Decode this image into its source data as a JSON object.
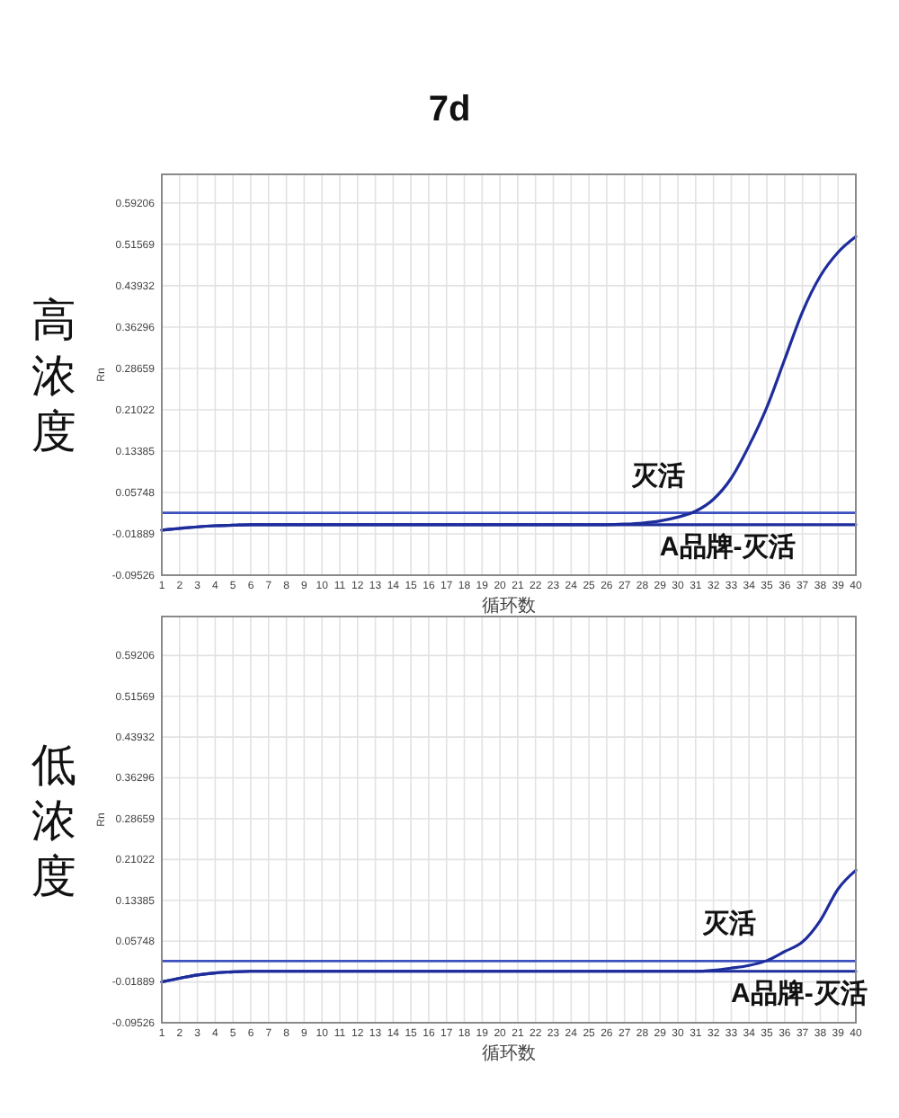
{
  "chart_data": [
    {
      "type": "line",
      "title": "7d",
      "subtitle": "高浓度",
      "xlabel": "循环数",
      "ylabel": "Rn",
      "x": [
        1,
        2,
        3,
        4,
        5,
        6,
        7,
        8,
        9,
        10,
        11,
        12,
        13,
        14,
        15,
        16,
        17,
        18,
        19,
        20,
        21,
        22,
        23,
        24,
        25,
        26,
        27,
        28,
        29,
        30,
        31,
        32,
        33,
        34,
        35,
        36,
        37,
        38,
        39,
        40
      ],
      "xlim": [
        1,
        40
      ],
      "xticks": [
        1,
        2,
        3,
        4,
        5,
        6,
        7,
        8,
        9,
        10,
        11,
        12,
        13,
        14,
        15,
        16,
        17,
        18,
        19,
        20,
        21,
        22,
        23,
        24,
        25,
        26,
        27,
        28,
        29,
        30,
        31,
        32,
        33,
        34,
        35,
        36,
        37,
        38,
        39,
        40
      ],
      "ylim": [
        -0.09526,
        0.645
      ],
      "yticks": [
        -0.09526,
        -0.01889,
        0.05748,
        0.13385,
        0.21022,
        0.28659,
        0.36296,
        0.43932,
        0.51569,
        0.59206
      ],
      "grid": true,
      "series": [
        {
          "name": "灭活",
          "color": "#1e2d9c",
          "values": [
            -0.012,
            -0.009,
            -0.006,
            -0.004,
            -0.003,
            -0.002,
            -0.002,
            -0.002,
            -0.002,
            -0.002,
            -0.002,
            -0.002,
            -0.002,
            -0.002,
            -0.002,
            -0.002,
            -0.002,
            -0.002,
            -0.002,
            -0.002,
            -0.002,
            -0.002,
            -0.002,
            -0.002,
            -0.002,
            -0.002,
            -0.001,
            0.001,
            0.005,
            0.012,
            0.023,
            0.045,
            0.084,
            0.144,
            0.215,
            0.303,
            0.391,
            0.457,
            0.501,
            0.53
          ]
        },
        {
          "name": "A品牌-灭活",
          "color": "#1e2d9c",
          "values": [
            -0.012,
            -0.009,
            -0.006,
            -0.004,
            -0.003,
            -0.002,
            -0.002,
            -0.002,
            -0.002,
            -0.002,
            -0.002,
            -0.002,
            -0.002,
            -0.002,
            -0.002,
            -0.002,
            -0.002,
            -0.002,
            -0.002,
            -0.002,
            -0.002,
            -0.002,
            -0.002,
            -0.002,
            -0.002,
            -0.002,
            -0.002,
            -0.002,
            -0.002,
            -0.002,
            -0.002,
            -0.002,
            -0.002,
            -0.002,
            -0.002,
            -0.002,
            -0.002,
            -0.002,
            -0.002,
            -0.002
          ]
        }
      ],
      "ref_lines": [
        {
          "axis": "y",
          "value": 0.02,
          "color": "#3c50c0"
        }
      ]
    },
    {
      "type": "line",
      "subtitle": "低浓度",
      "xlabel": "循环数",
      "ylabel": "Rn",
      "x": [
        1,
        2,
        3,
        4,
        5,
        6,
        7,
        8,
        9,
        10,
        11,
        12,
        13,
        14,
        15,
        16,
        17,
        18,
        19,
        20,
        21,
        22,
        23,
        24,
        25,
        26,
        27,
        28,
        29,
        30,
        31,
        32,
        33,
        34,
        35,
        36,
        37,
        38,
        39,
        40
      ],
      "xlim": [
        1,
        40
      ],
      "xticks": [
        1,
        2,
        3,
        4,
        5,
        6,
        7,
        8,
        9,
        10,
        11,
        12,
        13,
        14,
        15,
        16,
        17,
        18,
        19,
        20,
        21,
        22,
        23,
        24,
        25,
        26,
        27,
        28,
        29,
        30,
        31,
        32,
        33,
        34,
        35,
        36,
        37,
        38,
        39,
        40
      ],
      "ylim": [
        -0.09526,
        0.665
      ],
      "yticks": [
        -0.09526,
        -0.01889,
        0.05748,
        0.13385,
        0.21022,
        0.28659,
        0.36296,
        0.43932,
        0.51569,
        0.59206
      ],
      "grid": true,
      "series": [
        {
          "name": "灭活",
          "color": "#1e2d9c",
          "values": [
            -0.019,
            -0.012,
            -0.006,
            -0.002,
            0.0,
            0.001,
            0.001,
            0.001,
            0.001,
            0.001,
            0.001,
            0.001,
            0.001,
            0.001,
            0.001,
            0.001,
            0.001,
            0.001,
            0.001,
            0.001,
            0.001,
            0.001,
            0.001,
            0.001,
            0.001,
            0.001,
            0.001,
            0.001,
            0.001,
            0.001,
            0.001,
            0.003,
            0.007,
            0.012,
            0.021,
            0.038,
            0.056,
            0.096,
            0.155,
            0.19
          ]
        },
        {
          "name": "A品牌-灭活",
          "color": "#1e2d9c",
          "values": [
            -0.019,
            -0.012,
            -0.006,
            -0.002,
            0.0,
            0.001,
            0.001,
            0.001,
            0.001,
            0.001,
            0.001,
            0.001,
            0.001,
            0.001,
            0.001,
            0.001,
            0.001,
            0.001,
            0.001,
            0.001,
            0.001,
            0.001,
            0.001,
            0.001,
            0.001,
            0.001,
            0.001,
            0.001,
            0.001,
            0.001,
            0.001,
            0.001,
            0.001,
            0.001,
            0.001,
            0.001,
            0.001,
            0.001,
            0.001,
            0.001
          ]
        }
      ],
      "ref_lines": [
        {
          "axis": "y",
          "value": 0.02,
          "color": "#3c50c0"
        }
      ]
    }
  ]
}
